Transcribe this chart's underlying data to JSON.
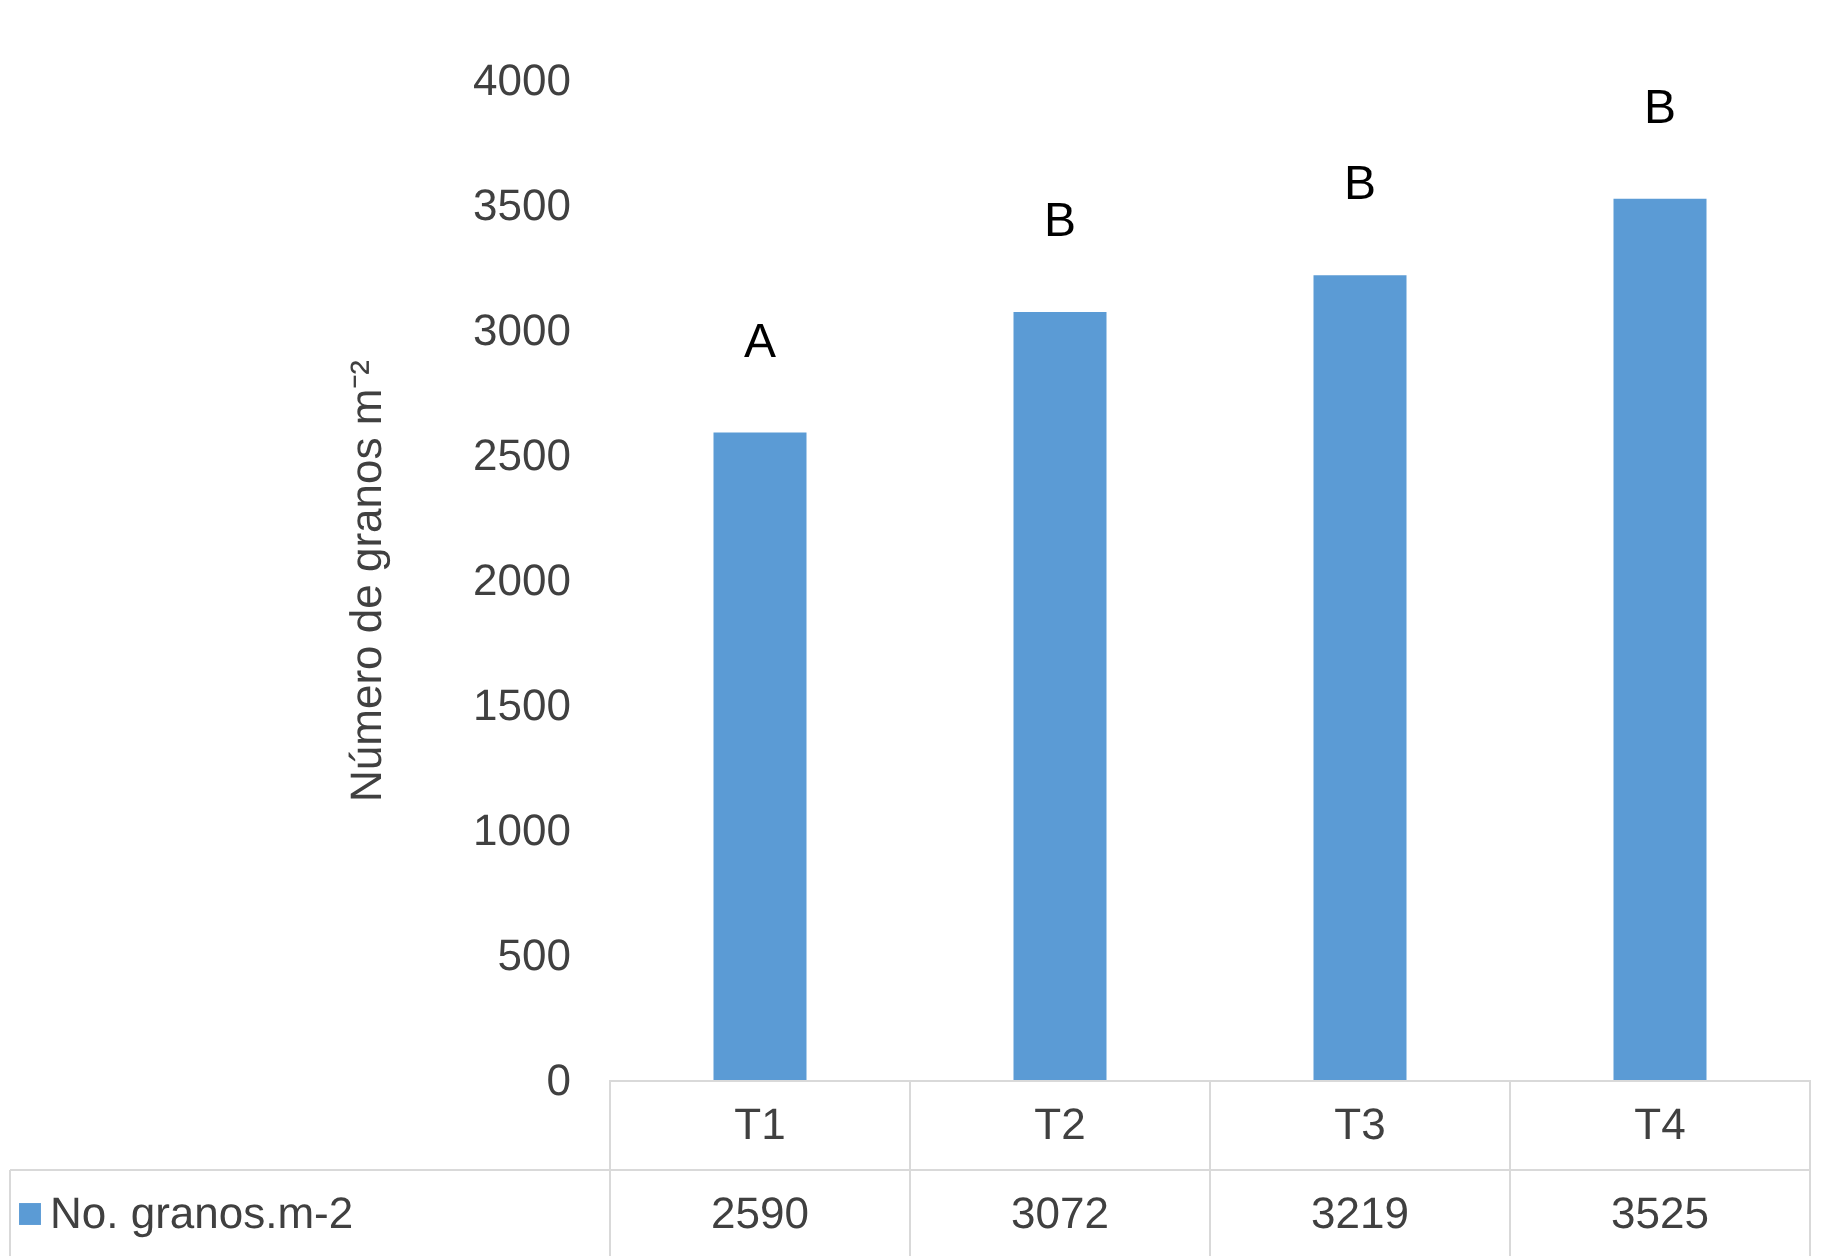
{
  "chart_data": {
    "type": "bar",
    "ylabel": "Número de granos m⁻²",
    "categories": [
      "T1",
      "T2",
      "T3",
      "T4"
    ],
    "series": [
      {
        "name": "No. granos.m-2",
        "color": "#5b9bd5",
        "values": [
          2590,
          3072,
          3219,
          3525
        ]
      }
    ],
    "ylim": [
      0,
      4000
    ],
    "yticks": [
      0,
      500,
      1000,
      1500,
      2000,
      2500,
      3000,
      3500,
      4000
    ],
    "grid": false,
    "legend": "bottom",
    "data_labels": true,
    "annotations": [
      "A",
      "B",
      "B",
      "B"
    ]
  }
}
